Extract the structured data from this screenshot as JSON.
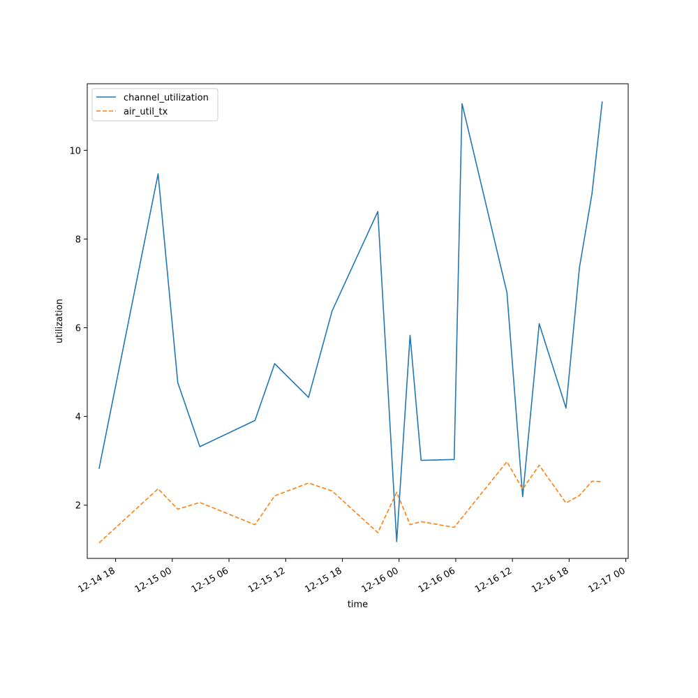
{
  "chart_data": {
    "type": "line",
    "title": "",
    "xlabel": "time",
    "ylabel": "utilization",
    "x_type": "datetime",
    "xlim": [
      "2014-12-14T15:00",
      "2014-12-17T00:15"
    ],
    "ylim": [
      0.8,
      11.5
    ],
    "x_ticks": [
      {
        "value": "2014-12-14T18:00",
        "label": "12-14 18"
      },
      {
        "value": "2014-12-15T00:00",
        "label": "12-15 00"
      },
      {
        "value": "2014-12-15T06:00",
        "label": "12-15 06"
      },
      {
        "value": "2014-12-15T12:00",
        "label": "12-15 12"
      },
      {
        "value": "2014-12-15T18:00",
        "label": "12-15 18"
      },
      {
        "value": "2014-12-16T00:00",
        "label": "12-16 00"
      },
      {
        "value": "2014-12-16T06:00",
        "label": "12-16 06"
      },
      {
        "value": "2014-12-16T12:00",
        "label": "12-16 12"
      },
      {
        "value": "2014-12-16T18:00",
        "label": "12-16 18"
      },
      {
        "value": "2014-12-17T00:00",
        "label": "12-17 00"
      }
    ],
    "y_ticks": [
      {
        "value": 2,
        "label": "2"
      },
      {
        "value": 4,
        "label": "4"
      },
      {
        "value": 6,
        "label": "6"
      },
      {
        "value": 8,
        "label": "8"
      },
      {
        "value": 10,
        "label": "10"
      }
    ],
    "grid": false,
    "legend_position": "top-left",
    "series": [
      {
        "name": "channel_utilization",
        "color": "#1f77b4",
        "style": "solid",
        "points": [
          {
            "x": "2014-12-14T16:15",
            "y": 2.82
          },
          {
            "x": "2014-12-14T22:30",
            "y": 9.47
          },
          {
            "x": "2014-12-15T00:35",
            "y": 4.76
          },
          {
            "x": "2014-12-15T02:55",
            "y": 3.32
          },
          {
            "x": "2014-12-15T08:45",
            "y": 3.91
          },
          {
            "x": "2014-12-15T10:50",
            "y": 5.19
          },
          {
            "x": "2014-12-15T14:25",
            "y": 4.43
          },
          {
            "x": "2014-12-15T16:55",
            "y": 6.38
          },
          {
            "x": "2014-12-15T21:45",
            "y": 8.62
          },
          {
            "x": "2014-12-15T23:45",
            "y": 1.18
          },
          {
            "x": "2014-12-16T01:10",
            "y": 5.83
          },
          {
            "x": "2014-12-16T02:20",
            "y": 3.01
          },
          {
            "x": "2014-12-16T05:50",
            "y": 3.03
          },
          {
            "x": "2014-12-16T06:40",
            "y": 11.05
          },
          {
            "x": "2014-12-16T11:25",
            "y": 6.79
          },
          {
            "x": "2014-12-16T13:05",
            "y": 2.19
          },
          {
            "x": "2014-12-16T14:50",
            "y": 6.09
          },
          {
            "x": "2014-12-16T17:40",
            "y": 4.19
          },
          {
            "x": "2014-12-16T19:05",
            "y": 7.35
          },
          {
            "x": "2014-12-16T20:25",
            "y": 9.02
          },
          {
            "x": "2014-12-16T21:30",
            "y": 11.1
          }
        ]
      },
      {
        "name": "air_util_tx",
        "color": "#ff7f0e",
        "style": "dashed",
        "points": [
          {
            "x": "2014-12-14T16:15",
            "y": 1.15
          },
          {
            "x": "2014-12-14T22:30",
            "y": 2.37
          },
          {
            "x": "2014-12-15T00:35",
            "y": 1.91
          },
          {
            "x": "2014-12-15T02:55",
            "y": 2.06
          },
          {
            "x": "2014-12-15T08:45",
            "y": 1.56
          },
          {
            "x": "2014-12-15T10:50",
            "y": 2.21
          },
          {
            "x": "2014-12-15T14:25",
            "y": 2.5
          },
          {
            "x": "2014-12-15T16:55",
            "y": 2.32
          },
          {
            "x": "2014-12-15T21:45",
            "y": 1.38
          },
          {
            "x": "2014-12-15T23:45",
            "y": 2.29
          },
          {
            "x": "2014-12-16T01:10",
            "y": 1.56
          },
          {
            "x": "2014-12-16T02:20",
            "y": 1.63
          },
          {
            "x": "2014-12-16T05:50",
            "y": 1.5
          },
          {
            "x": "2014-12-16T11:25",
            "y": 2.98
          },
          {
            "x": "2014-12-16T13:05",
            "y": 2.36
          },
          {
            "x": "2014-12-16T14:50",
            "y": 2.9
          },
          {
            "x": "2014-12-16T17:40",
            "y": 2.05
          },
          {
            "x": "2014-12-16T19:05",
            "y": 2.22
          },
          {
            "x": "2014-12-16T20:25",
            "y": 2.54
          },
          {
            "x": "2014-12-16T21:30",
            "y": 2.53
          }
        ]
      }
    ]
  }
}
